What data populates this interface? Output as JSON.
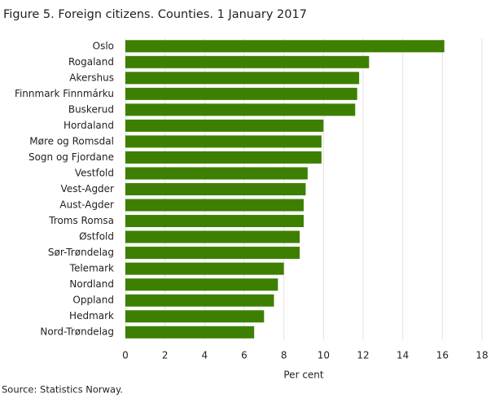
{
  "chart_data": {
    "type": "bar",
    "orientation": "horizontal",
    "title": "Figure 5. Foreign citizens. Counties. 1 January 2017",
    "xlabel": "Per cent",
    "source": "Source: Statistics Norway.",
    "categories": [
      "Oslo",
      "Rogaland",
      "Akershus",
      "Finnmark Finnmárku",
      "Buskerud",
      "Hordaland",
      "Møre og Romsdal",
      "Sogn og Fjordane",
      "Vestfold",
      "Vest-Agder",
      "Aust-Agder",
      "Troms Romsa",
      "Østfold",
      "Sør-Trøndelag",
      "Telemark",
      "Nordland",
      "Oppland",
      "Hedmark",
      "Nord-Trøndelag"
    ],
    "values": [
      16.1,
      12.3,
      11.8,
      11.7,
      11.6,
      10.0,
      9.9,
      9.9,
      9.2,
      9.1,
      9.0,
      9.0,
      8.8,
      8.8,
      8.0,
      7.7,
      7.5,
      7.0,
      6.5
    ],
    "color": "#3d7f00",
    "xlim": [
      0,
      18
    ],
    "xticks": [
      0,
      2,
      4,
      6,
      8,
      10,
      12,
      14,
      16,
      18
    ],
    "grid": true
  }
}
